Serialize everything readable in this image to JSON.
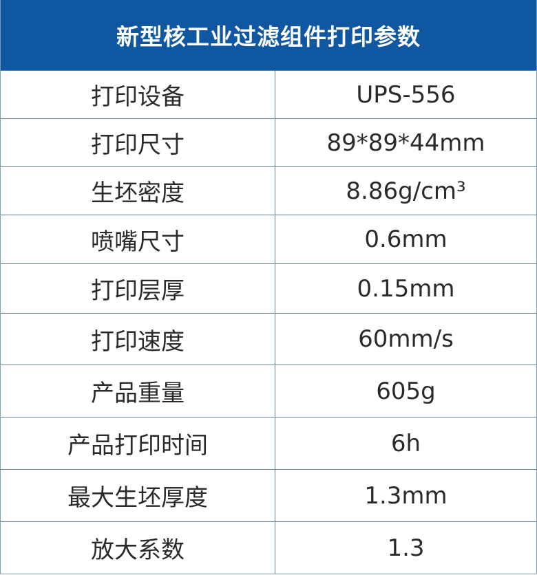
{
  "title": "新型核工业过滤组件打印参数",
  "colors": {
    "header_bg": "#0f57a0",
    "header_text": "#ffffff",
    "border": "#5f7f99"
  },
  "rows": [
    {
      "label": "打印设备",
      "value": "UPS-556"
    },
    {
      "label": "打印尺寸",
      "value": "89*89*44mm"
    },
    {
      "label": "生坯密度",
      "value": "8.86g/cm³"
    },
    {
      "label": "喷嘴尺寸",
      "value": "0.6mm"
    },
    {
      "label": "打印层厚",
      "value": "0.15mm"
    },
    {
      "label": "打印速度",
      "value": "60mm/s"
    },
    {
      "label": "产品重量",
      "value": "605g"
    },
    {
      "label": "产品打印时间",
      "value": "6h"
    },
    {
      "label": "最大生坯厚度",
      "value": "1.3mm"
    },
    {
      "label": "放大系数",
      "value": "1.3"
    }
  ]
}
